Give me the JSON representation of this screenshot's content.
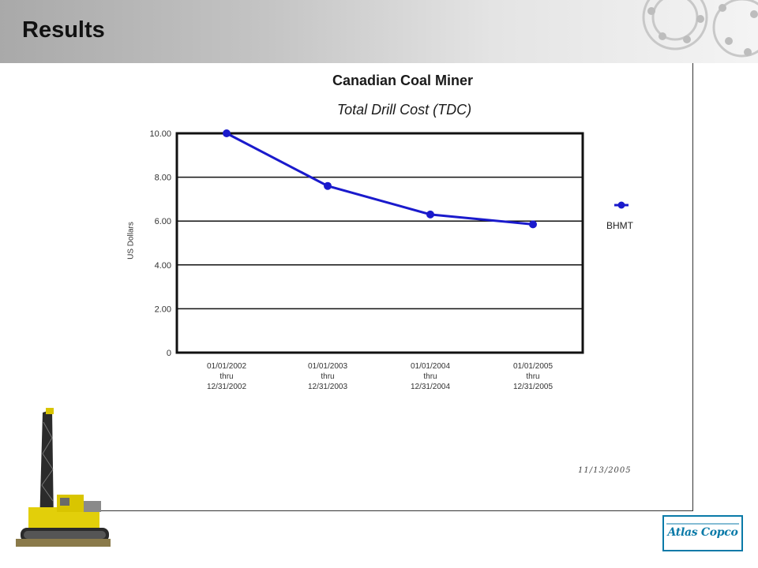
{
  "header": {
    "title": "Results"
  },
  "chart_data": {
    "type": "line",
    "title": "Canadian Coal Miner",
    "subtitle": "Total Drill Cost (TDC)",
    "xlabel": "",
    "ylabel": "US Dollars",
    "categories": [
      [
        "01/01/2002",
        "thru",
        "12/31/2002"
      ],
      [
        "01/01/2003",
        "thru",
        "12/31/2003"
      ],
      [
        "01/01/2004",
        "thru",
        "12/31/2004"
      ],
      [
        "01/01/2005",
        "thru",
        "12/31/2005"
      ]
    ],
    "series": [
      {
        "name": "BHMT",
        "values": [
          10.0,
          7.6,
          6.3,
          5.85
        ],
        "color": "#1a1acc"
      }
    ],
    "yticks": [
      "0",
      "2.00",
      "4.00",
      "6.00",
      "8.00",
      "10.00"
    ],
    "ylim": [
      0,
      10
    ],
    "grid": true,
    "legend": "right"
  },
  "footer": {
    "date": "11/13/2005",
    "logo": "Atlas Copco"
  }
}
